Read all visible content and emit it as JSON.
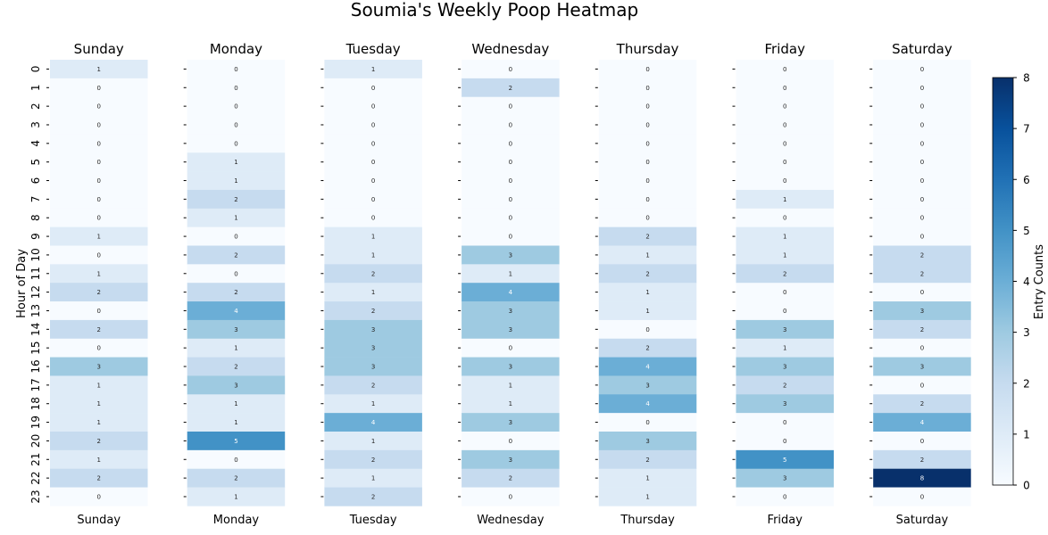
{
  "chart_data": {
    "type": "heatmap",
    "title": "Soumia's Weekly Poop Heatmap",
    "ylabel": "Hour of Day",
    "colorbar_label": "Entry Counts",
    "colorbar_ticks": [
      0,
      1,
      2,
      3,
      4,
      5,
      6,
      7,
      8
    ],
    "value_range": [
      0,
      8
    ],
    "colormap": "Blues",
    "hours": [
      0,
      1,
      2,
      3,
      4,
      5,
      6,
      7,
      8,
      9,
      10,
      11,
      12,
      13,
      14,
      15,
      16,
      17,
      18,
      19,
      20,
      21,
      22,
      23
    ],
    "days": [
      {
        "name": "Sunday",
        "values": [
          1,
          0,
          0,
          0,
          0,
          0,
          0,
          0,
          0,
          1,
          0,
          1,
          2,
          0,
          2,
          0,
          3,
          1,
          1,
          1,
          2,
          1,
          2,
          0
        ]
      },
      {
        "name": "Monday",
        "values": [
          0,
          0,
          0,
          0,
          0,
          1,
          1,
          2,
          1,
          0,
          2,
          0,
          2,
          4,
          3,
          1,
          2,
          3,
          1,
          1,
          5,
          0,
          2,
          1
        ]
      },
      {
        "name": "Tuesday",
        "values": [
          1,
          0,
          0,
          0,
          0,
          0,
          0,
          0,
          0,
          1,
          1,
          2,
          1,
          2,
          3,
          3,
          3,
          2,
          1,
          4,
          1,
          2,
          1,
          2
        ]
      },
      {
        "name": "Wednesday",
        "values": [
          0,
          2,
          0,
          0,
          0,
          0,
          0,
          0,
          0,
          0,
          3,
          1,
          4,
          3,
          3,
          0,
          3,
          1,
          1,
          3,
          0,
          3,
          2,
          0
        ]
      },
      {
        "name": "Thursday",
        "values": [
          0,
          0,
          0,
          0,
          0,
          0,
          0,
          0,
          0,
          2,
          1,
          2,
          1,
          1,
          0,
          2,
          4,
          3,
          4,
          0,
          3,
          2,
          1,
          1
        ]
      },
      {
        "name": "Friday",
        "values": [
          0,
          0,
          0,
          0,
          0,
          0,
          0,
          1,
          0,
          1,
          1,
          2,
          0,
          0,
          3,
          1,
          3,
          2,
          3,
          0,
          0,
          5,
          3,
          0
        ]
      },
      {
        "name": "Saturday",
        "values": [
          0,
          0,
          0,
          0,
          0,
          0,
          0,
          0,
          0,
          0,
          2,
          2,
          0,
          3,
          2,
          0,
          3,
          0,
          2,
          4,
          0,
          2,
          8,
          0
        ]
      }
    ]
  }
}
